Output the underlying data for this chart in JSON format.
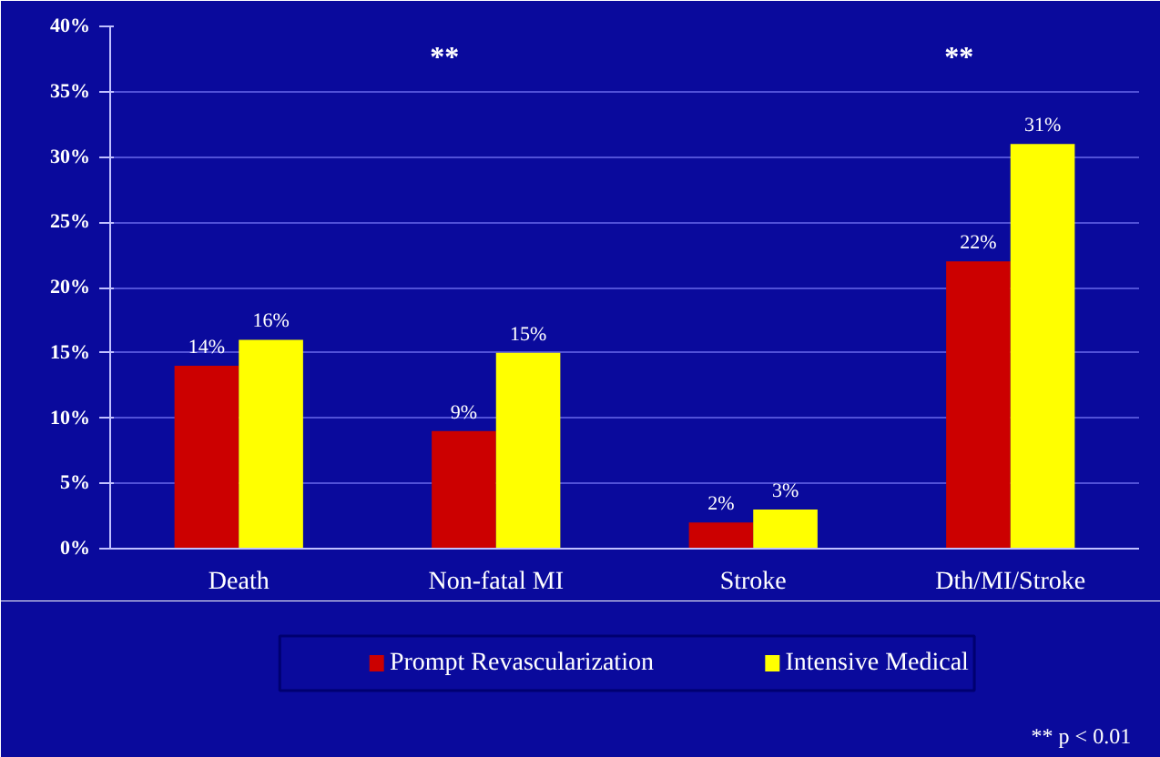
{
  "chart_data": {
    "type": "bar",
    "categories": [
      "Death",
      "Non-fatal MI",
      "Stroke",
      "Dth/MI/Stroke"
    ],
    "series": [
      {
        "name": "Prompt Revascularization",
        "color": "#cc0000",
        "values": [
          14,
          9,
          2,
          22
        ]
      },
      {
        "name": "Intensive Medical",
        "color": "#ffff00",
        "values": [
          16,
          15,
          3,
          31
        ]
      }
    ],
    "ylim": [
      0,
      40
    ],
    "yticks": [
      {
        "value": 0,
        "label": "0%"
      },
      {
        "value": 5,
        "label": "5%"
      },
      {
        "value": 10,
        "label": "10%"
      },
      {
        "value": 15,
        "label": "15%"
      },
      {
        "value": 20,
        "label": "20%"
      },
      {
        "value": 25,
        "label": "25%"
      },
      {
        "value": 30,
        "label": "30%"
      },
      {
        "value": 35,
        "label": "35%"
      },
      {
        "value": 40,
        "label": "40%"
      }
    ],
    "value_labels": [
      [
        "14%",
        "9%",
        "2%",
        "22%"
      ],
      [
        "16%",
        "15%",
        "3%",
        "31%"
      ]
    ],
    "grid": "y",
    "legend": "bottom",
    "annotations": [
      "**",
      "**",
      "** p < 0.01"
    ]
  }
}
